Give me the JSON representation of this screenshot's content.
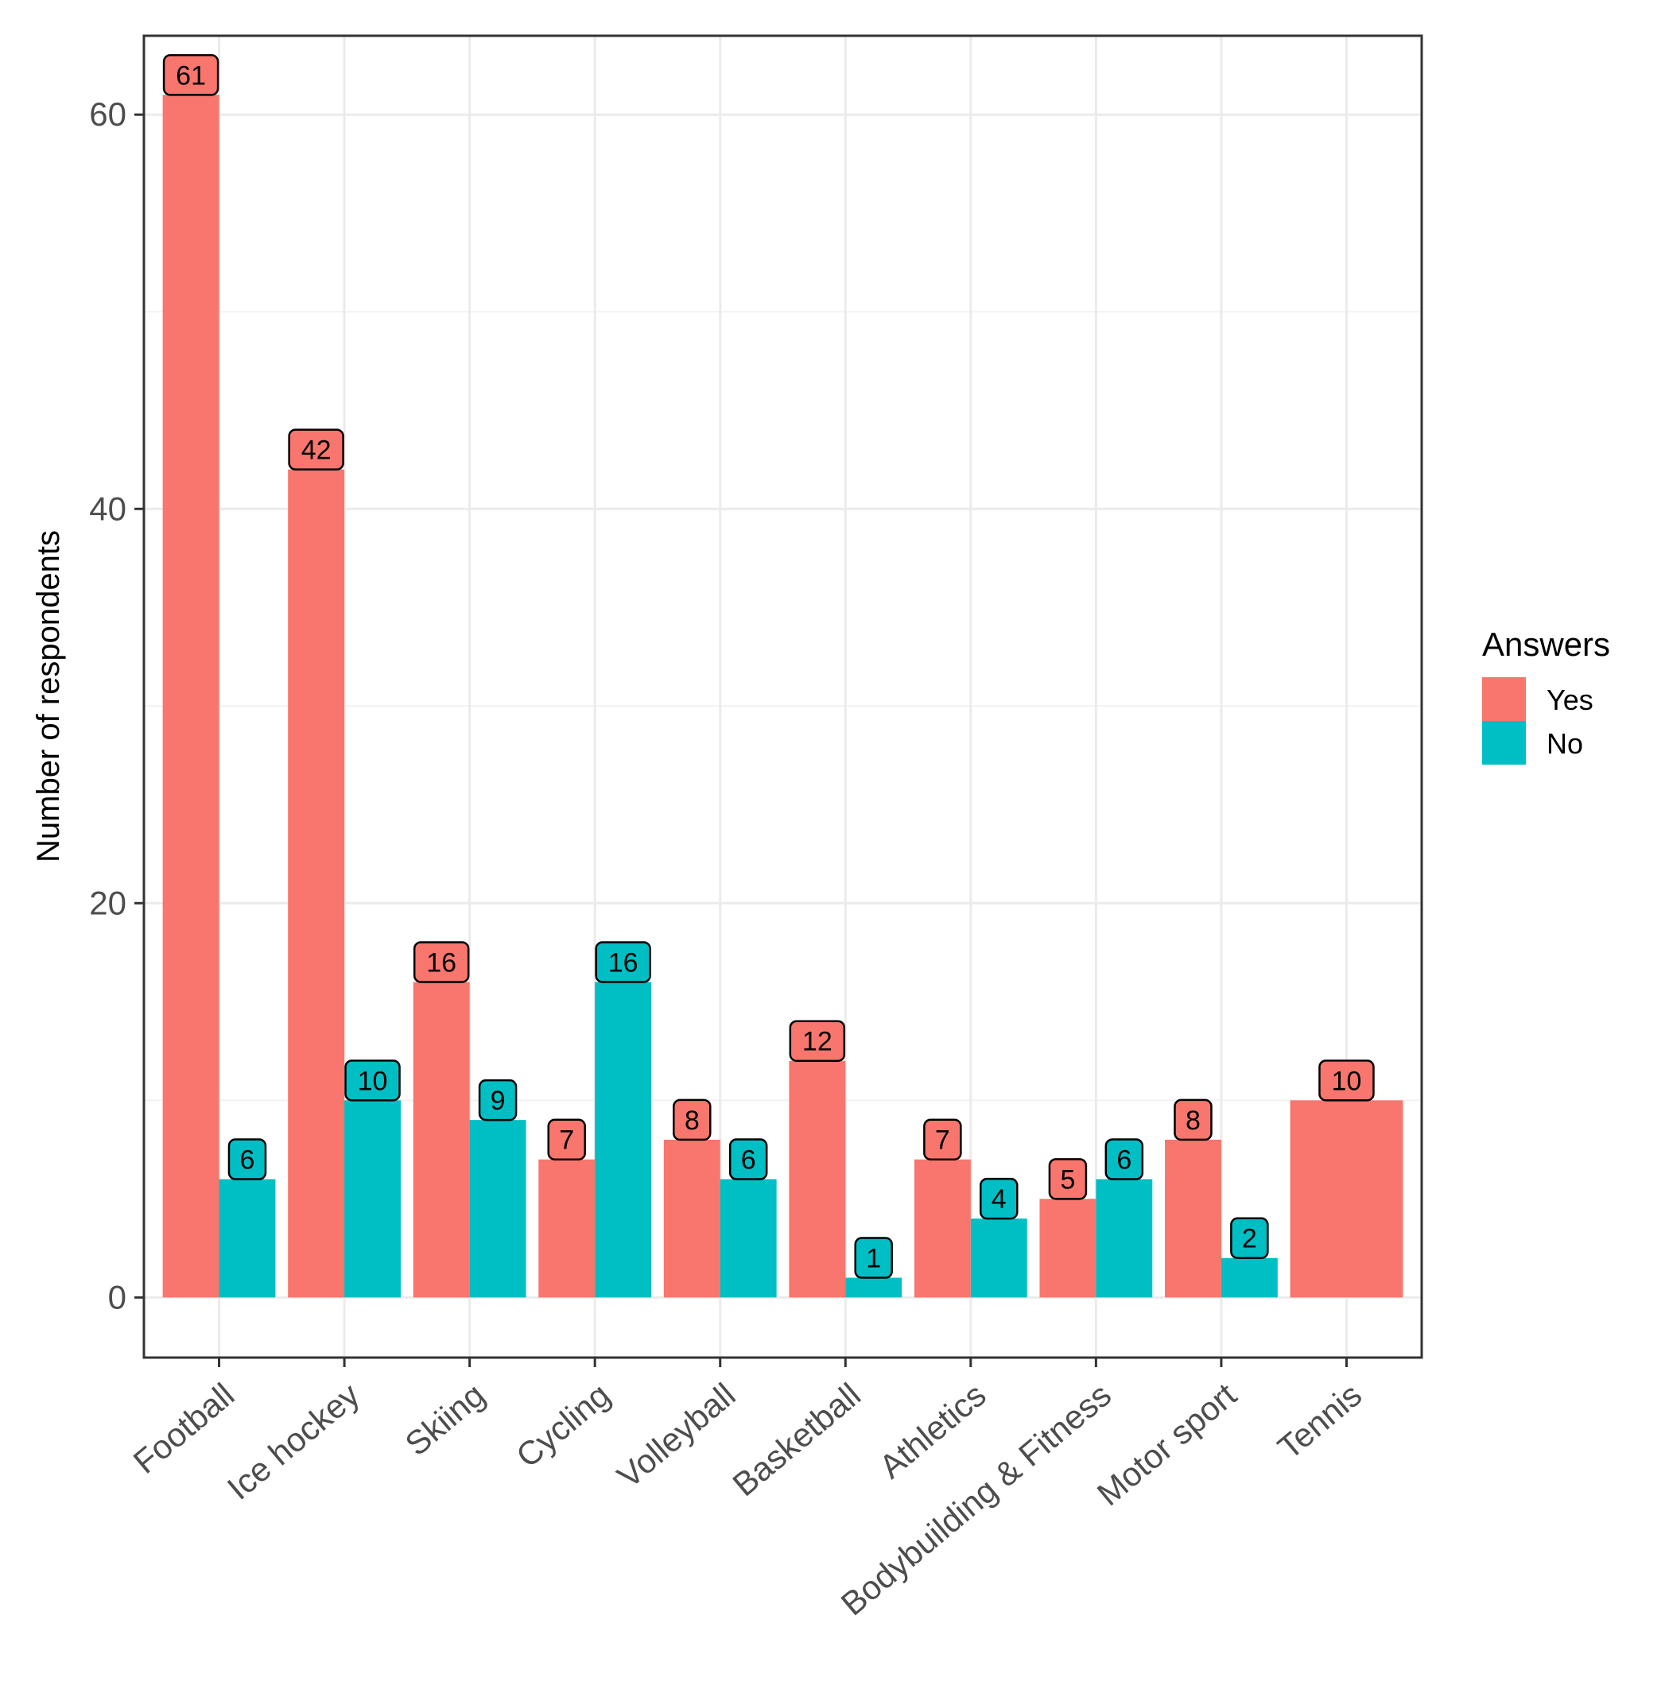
{
  "chart_data": {
    "type": "bar",
    "categories": [
      "Football",
      "Ice hockey",
      "Skiing",
      "Cycling",
      "Volleyball",
      "Basketball",
      "Athletics",
      "Bodybuilding & Fitness",
      "Motor sport",
      "Tennis"
    ],
    "series": [
      {
        "name": "Yes",
        "color": "#F8766D",
        "values": [
          61,
          42,
          16,
          7,
          8,
          12,
          7,
          5,
          8,
          10
        ]
      },
      {
        "name": "No",
        "color": "#00BFC4",
        "values": [
          6,
          10,
          9,
          16,
          6,
          1,
          4,
          6,
          2,
          null
        ]
      }
    ],
    "title": "",
    "xlabel": "",
    "ylabel": "Number of respondents",
    "ylim": [
      -3.05,
      64
    ],
    "yticks": [
      0,
      20,
      40,
      60
    ],
    "grid": true,
    "legend": {
      "title": "Answers",
      "position": "right"
    }
  }
}
